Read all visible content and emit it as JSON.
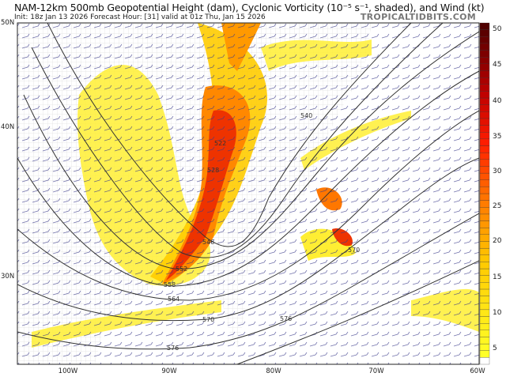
{
  "header": {
    "title": "NAM-12km 500mb Geopotential Height (dam), Cyclonic Vorticity (10⁻⁵ s⁻¹, shaded), and Wind (kt)",
    "subtitle": "Init: 18z Jan 13 2026   Forecast Hour: [31]   valid at 01z Thu, Jan 15 2026",
    "watermark": "TROPICALTIDBITS.COM"
  },
  "map": {
    "lat_labels": [
      "50N",
      "40N",
      "30N"
    ],
    "lon_labels": [
      "100W",
      "90W",
      "80W",
      "70W",
      "60W"
    ],
    "height_contour_labels": [
      "522",
      "528",
      "540",
      "546",
      "552",
      "558",
      "564",
      "570",
      "576",
      "570",
      "576"
    ],
    "shading_colors": {
      "low": "#ffff33",
      "mid": "#ff9900",
      "high": "#ee2200",
      "max": "#550000"
    },
    "barb_color": "#3a3a8a",
    "contour_color": "#333333"
  },
  "colorbar": {
    "ticks": [
      "50",
      "45",
      "40",
      "35",
      "30",
      "25",
      "20",
      "15",
      "10",
      "5"
    ],
    "min": 2,
    "max": 52
  }
}
